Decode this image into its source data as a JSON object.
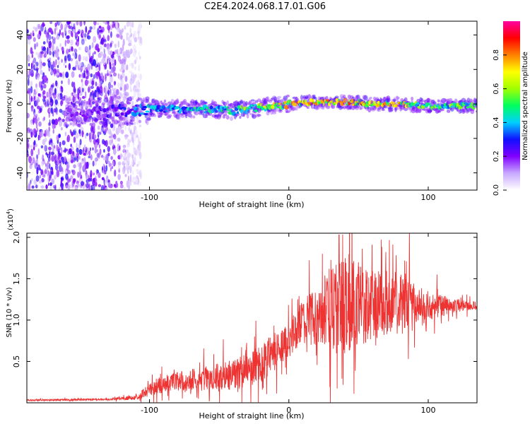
{
  "title": "C2E4.2024.068.17.01.G06",
  "chart_data": [
    {
      "type": "heatmap",
      "xlabel": "Height of straight line (km)",
      "ylabel": "Frequency (Hz)",
      "xlim": [
        -188,
        135
      ],
      "ylim": [
        -50,
        48
      ],
      "xticks": [
        -100,
        0,
        100
      ],
      "xtick_labels": [
        "-100",
        "0",
        "100"
      ],
      "yticks": [
        -40,
        -20,
        0,
        20,
        40
      ],
      "ytick_labels": [
        "-40",
        "-20",
        "0",
        "20",
        "40"
      ],
      "colorbar": {
        "label": "Normalized spectral amplitude",
        "range": [
          0,
          1
        ],
        "ticks": [
          0.0,
          0.2,
          0.4,
          0.6,
          0.8
        ],
        "tick_labels": [
          "0.0",
          "0.2",
          "0.4",
          "0.6",
          "0.8"
        ],
        "colors": [
          "#ffffff",
          "#c8a8ff",
          "#8000ff",
          "#1010ff",
          "#00d0ff",
          "#00ff60",
          "#a0ff00",
          "#ffff00",
          "#ff8000",
          "#ff0000",
          "#ff00a0"
        ]
      },
      "noise_region": {
        "x_range": [
          -188,
          -110
        ],
        "note": "scattered purple speckle across all frequencies"
      },
      "ridge": {
        "x": [
          -150,
          -120,
          -100,
          -80,
          -60,
          -40,
          -20,
          0,
          20,
          40,
          60,
          80,
          100,
          120,
          135
        ],
        "frequency": [
          -5,
          -4,
          -3,
          -3,
          -3,
          -4,
          -2,
          0,
          1,
          1,
          0,
          0,
          -1,
          -1,
          -1
        ],
        "amplitude": [
          0.2,
          0.3,
          0.45,
          0.5,
          0.5,
          0.55,
          0.65,
          0.8,
          0.85,
          0.85,
          0.8,
          0.8,
          0.6,
          0.6,
          0.55
        ]
      }
    },
    {
      "type": "line",
      "xlabel": "Height of straight line (km)",
      "ylabel": "SNR (10 * v/v)",
      "ylabel_scale": "(x10",
      "ylabel_scale_exp": "4",
      "ylabel_scale_close": ")",
      "color": "#ee3333",
      "xlim": [
        -188,
        135
      ],
      "ylim": [
        0,
        2.05
      ],
      "xticks": [
        -100,
        0,
        100
      ],
      "xtick_labels": [
        "-100",
        "0",
        "100"
      ],
      "yticks": [
        0.5,
        1.0,
        1.5,
        2.0
      ],
      "ytick_labels": [
        "0.5",
        "1.0",
        "1.5",
        "2.0"
      ],
      "baseline": {
        "x": [
          -188,
          -130,
          -110,
          -100,
          -80,
          -60,
          -40,
          -20,
          0,
          10,
          20,
          30,
          40,
          60,
          80,
          100,
          120,
          135
        ],
        "y": [
          0.03,
          0.04,
          0.06,
          0.15,
          0.25,
          0.28,
          0.32,
          0.45,
          0.75,
          0.95,
          1.0,
          1.05,
          1.1,
          1.15,
          1.18,
          1.15,
          1.17,
          1.17
        ]
      },
      "spread": {
        "x": [
          -188,
          -130,
          -110,
          -100,
          -80,
          -60,
          -40,
          -20,
          0,
          20,
          30,
          40,
          60,
          80,
          100,
          120,
          135
        ],
        "y": [
          0.01,
          0.01,
          0.03,
          0.08,
          0.12,
          0.15,
          0.18,
          0.25,
          0.2,
          0.35,
          0.55,
          0.6,
          0.45,
          0.35,
          0.18,
          0.08,
          0.05
        ]
      },
      "peak": {
        "x": 36,
        "y": 2.03
      }
    }
  ]
}
